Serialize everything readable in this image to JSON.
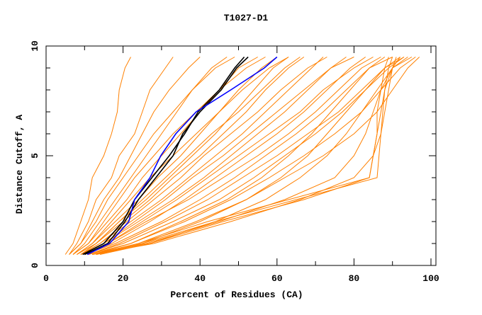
{
  "chart_data": {
    "type": "line",
    "title": "T1027-D1",
    "xlabel": "Percent of Residues (CA)",
    "ylabel": "Distance Cutoff, A",
    "xlim": [
      0,
      100
    ],
    "ylim": [
      0,
      10
    ],
    "x_ticks": [
      "0",
      "20",
      "40",
      "60",
      "80",
      "100"
    ],
    "y_ticks": [
      "0",
      "5",
      "10"
    ],
    "grid": false,
    "colors": {
      "models": "#ff8000",
      "highlight_a": "#000000",
      "highlight_b": "#0000ff"
    },
    "y_levels": [
      0.5,
      1,
      2,
      3,
      4,
      5,
      6,
      7,
      8,
      9,
      9.5
    ],
    "orange_series_x": [
      [
        5,
        7,
        9,
        11,
        12,
        15,
        17,
        18.5,
        19,
        20.5,
        22
      ],
      [
        6,
        8,
        11,
        13,
        17,
        19,
        23,
        25,
        27,
        31,
        33
      ],
      [
        6,
        9,
        12,
        15,
        19,
        22,
        25,
        28,
        32,
        37,
        40
      ],
      [
        7,
        10,
        14,
        18,
        22,
        26,
        30,
        34,
        38,
        43,
        47
      ],
      [
        7,
        11,
        16,
        21,
        25,
        30,
        35,
        40,
        45,
        50,
        55
      ],
      [
        8,
        12,
        18,
        24,
        29,
        35,
        40,
        45,
        50,
        56,
        60
      ],
      [
        8,
        13,
        20,
        27,
        33,
        40,
        46,
        52,
        57,
        63,
        67
      ],
      [
        9,
        14,
        22,
        30,
        37,
        44,
        51,
        57,
        63,
        69,
        72
      ],
      [
        9,
        15,
        24,
        33,
        41,
        48,
        55,
        62,
        68,
        74,
        78
      ],
      [
        10,
        17,
        27,
        36,
        44,
        52,
        60,
        67,
        73,
        79,
        83
      ],
      [
        10,
        18,
        30,
        40,
        49,
        57,
        65,
        72,
        78,
        84,
        88
      ],
      [
        11,
        20,
        33,
        45,
        54,
        62,
        70,
        77,
        83,
        89,
        93
      ],
      [
        11,
        22,
        36,
        48,
        58,
        67,
        75,
        82,
        87,
        92,
        96
      ],
      [
        12,
        24,
        39,
        52,
        62,
        72,
        80,
        86,
        90,
        94,
        97
      ],
      [
        12,
        22,
        35,
        47,
        56,
        63,
        69,
        74,
        79,
        84,
        90
      ],
      [
        13,
        25,
        40,
        52,
        61,
        68,
        73,
        78,
        83,
        88,
        93
      ],
      [
        13,
        27,
        44,
        57,
        66,
        73,
        78,
        82,
        86,
        90,
        95
      ],
      [
        12,
        26,
        45,
        62,
        75,
        80,
        83,
        85,
        87,
        90,
        94
      ],
      [
        12,
        28,
        48,
        66,
        80,
        85,
        87,
        88,
        89,
        90,
        92
      ],
      [
        12,
        24,
        42,
        63,
        84,
        85,
        86,
        86,
        87,
        88,
        89
      ],
      [
        13,
        25,
        44,
        65,
        86,
        86.5,
        87,
        87.5,
        88,
        89,
        90
      ],
      [
        14,
        27,
        46,
        67,
        84,
        85,
        86,
        87,
        88,
        90,
        91
      ],
      [
        9,
        13,
        19,
        25,
        31,
        37,
        43,
        50,
        56,
        62,
        66
      ],
      [
        8,
        12,
        17,
        22,
        27,
        33,
        39,
        45,
        51,
        58,
        63
      ],
      [
        7,
        11,
        15,
        19,
        23,
        28,
        33,
        39,
        45,
        52,
        57
      ],
      [
        10,
        16,
        25,
        34,
        42,
        50,
        58,
        66,
        72,
        80,
        85
      ],
      [
        11,
        19,
        31,
        42,
        51,
        60,
        68,
        76,
        82,
        88,
        92
      ],
      [
        9,
        14,
        21,
        28,
        35,
        41,
        48,
        55,
        61,
        68,
        73
      ],
      [
        6,
        9,
        13,
        16,
        20,
        24,
        28,
        33,
        38,
        44,
        49
      ],
      [
        8,
        13,
        19,
        26,
        32,
        38,
        44,
        49,
        54,
        59,
        63
      ],
      [
        10,
        16,
        26,
        37,
        46,
        55,
        63,
        70,
        76,
        82,
        87
      ],
      [
        9,
        15,
        23,
        31,
        38,
        46,
        53,
        60,
        67,
        74,
        80
      ]
    ],
    "black_series_x": [
      [
        10,
        16,
        20.5,
        24,
        28.5,
        33,
        35.5,
        40,
        45.5,
        49.5,
        52.5
      ],
      [
        9.5,
        15,
        20,
        23,
        27.5,
        32,
        36,
        39.5,
        45,
        49,
        51.5
      ]
    ],
    "blue_series_x": [
      10.7,
      16.5,
      21.5,
      23,
      27,
      29.8,
      33.7,
      39,
      48,
      56.7,
      60
    ]
  }
}
